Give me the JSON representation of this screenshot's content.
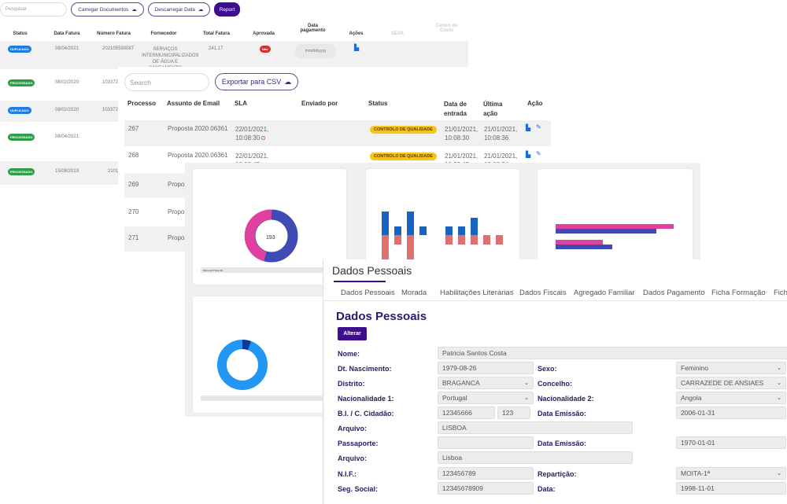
{
  "invoices": {
    "search_placeholder": "Pesquisar",
    "upload_label": "Carregar Documentos",
    "download_label": "Descarregar Data",
    "report_label": "Report",
    "columns": [
      "Status",
      "Data Fatura",
      "Número Fatura",
      "Fornecedor",
      "Total Fatura",
      "Aprovada",
      "Data pagamento",
      "Ações",
      "SEPA",
      "Centro de Custo"
    ],
    "rows": [
      {
        "status": "DUPLICADO",
        "date": "08/04/2021",
        "number": "202105590087",
        "supplier": "SERVIÇOS INTERMUNICIPALIZADOS DE ÁGUA E SANEAMENTO",
        "total": "241,17",
        "approved": "Não",
        "payment_placeholder": "mm/dd/yyyy"
      },
      {
        "status": "PROCESSADO",
        "date": "08/02/2020",
        "number": "103372"
      },
      {
        "status": "DUPLICADO",
        "date": "08/02/2020",
        "number": "103372"
      },
      {
        "status": "PROCESSADO",
        "date": "08/04/2021",
        "number": ""
      },
      {
        "status": "PROCESSADO",
        "date": "15/08/2019",
        "number": "2101"
      }
    ]
  },
  "processes": {
    "search_placeholder": "Search",
    "export_label": "Exportar para CSV",
    "columns": [
      "Processo",
      "Assunto de Email",
      "SLA",
      "Enviado por",
      "Status",
      "Data de entrada",
      "Última ação",
      "Ação"
    ],
    "rows": [
      {
        "id": "267",
        "subject": "Proposta 2020.06361",
        "sla": "22/01/2021, 10:08:30",
        "status": "CONTROLO DE QUALIDADE",
        "entry": "21/01/2021, 10:08:30",
        "last": "21/01/2021, 10:08:36"
      },
      {
        "id": "268",
        "subject": "Proposta 2020.06361",
        "sla": "22/01/2021, 10:08:45",
        "status": "CONTROLO DE QUALIDADE",
        "entry": "21/01/2021, 10:08:45",
        "last": "21/01/2021, 10:08:54"
      },
      {
        "id": "269",
        "subject": "Propos"
      },
      {
        "id": "270",
        "subject": "Propos"
      },
      {
        "id": "271",
        "subject": "Propos"
      }
    ]
  },
  "dashboard": {
    "donut_total": "193",
    "footer": "Microsoft Power BI",
    "colors": {
      "pink": "#e040a0",
      "indigo": "#3f4bb5",
      "blue": "#1565c0",
      "salmon": "#e07070",
      "sky": "#2196f3"
    }
  },
  "profile": {
    "title": "Dados Pessoais",
    "tabs": [
      "Dados Pessoais",
      "Morada",
      "Habilitações Literárias",
      "Dados Fiscais",
      "Agregado Familiar",
      "Dados Pagamento",
      "Ficha Formação",
      "Ficha"
    ],
    "section_title": "Dados Pessoais",
    "edit_label": "Alterar",
    "labels": {
      "nome": "Nome:",
      "nascimento": "Dt. Nascimento:",
      "sexo": "Sexo:",
      "distrito": "Distrito:",
      "concelho": "Concelho:",
      "nac1": "Nacionalidade 1:",
      "nac2": "Nacionalidade 2:",
      "bi": "B.I. / C. Cidadão:",
      "emissao": "Data Emissão:",
      "arquivo": "Arquivo:",
      "passaporte": "Passaporte:",
      "nif": "N.I.F.:",
      "reparticao": "Repartição:",
      "seg": "Seg. Social:",
      "data": "Data:"
    },
    "values": {
      "nome": "Patricia Santos Costa",
      "nascimento": "1979-08-26",
      "sexo": "Feminino",
      "distrito": "BRAGANCA",
      "concelho": "CARRAZEDE DE ANSIAES",
      "nac1": "Portugal",
      "nac2": "Angola",
      "bi": "12345666",
      "bi2": "123",
      "emissao": "2006-01-31",
      "arquivo": "LISBOA",
      "passaporte": "",
      "emissao2": "1970-01-01",
      "arquivo2": "Lisboa",
      "nif": "123456789",
      "reparticao": "MOITA-1ª",
      "seg": "12345678909",
      "data": "1998-11-01"
    }
  }
}
